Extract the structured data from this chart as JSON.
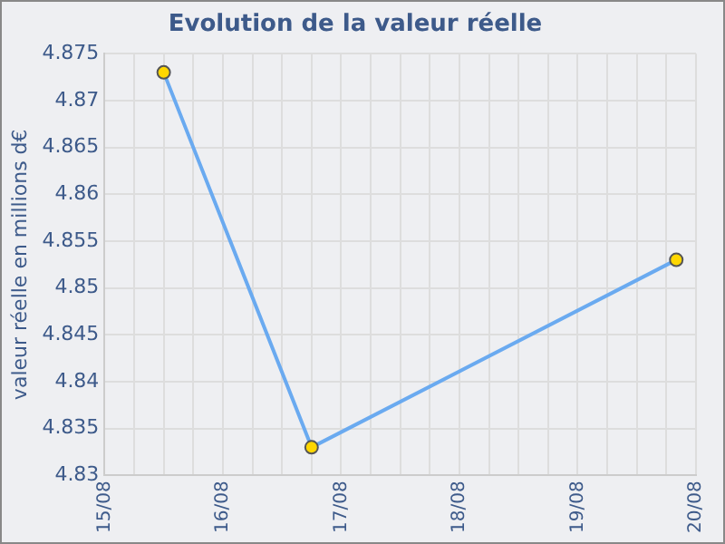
{
  "chart_data": {
    "type": "line",
    "title": "Evolution de la valeur réelle",
    "ylabel": "valeur réelle en millions d€",
    "x": [
      "--08-15T12:00",
      "--08-16T18:00",
      "--08-19T20:00"
    ],
    "series": [
      {
        "color": "#6aaaf0",
        "values": [
          4.873,
          4.833,
          4.853
        ]
      }
    ],
    "xlim": [
      "--08-15",
      "--08-20"
    ],
    "xticks": [
      {
        "value": "--08-15",
        "label": "15/08"
      },
      {
        "value": "--08-15T06:00",
        "label": null
      },
      {
        "value": "--08-15T12:00",
        "label": null
      },
      {
        "value": "--08-15T18:00",
        "label": null
      },
      {
        "value": "--08-16",
        "label": "16/08"
      },
      {
        "value": "--08-16T06:00",
        "label": null
      },
      {
        "value": "--08-16T12:00",
        "label": null
      },
      {
        "value": "--08-16T18:00",
        "label": null
      },
      {
        "value": "--08-17",
        "label": "17/08"
      },
      {
        "value": "--08-17T06:00",
        "label": null
      },
      {
        "value": "--08-17T12:00",
        "label": null
      },
      {
        "value": "--08-17T18:00",
        "label": null
      },
      {
        "value": "--08-18",
        "label": "18/08"
      },
      {
        "value": "--08-18T06:00",
        "label": null
      },
      {
        "value": "--08-18T12:00",
        "label": null
      },
      {
        "value": "--08-18T18:00",
        "label": null
      },
      {
        "value": "--08-19",
        "label": "19/08"
      },
      {
        "value": "--08-19T06:00",
        "label": null
      },
      {
        "value": "--08-19T12:00",
        "label": null
      },
      {
        "value": "--08-19T18:00",
        "label": null
      },
      {
        "value": "--08-20",
        "label": "20/08"
      }
    ],
    "ylim": [
      4.83,
      4.875
    ],
    "yticks": [
      4.83,
      4.835,
      4.84,
      4.845,
      4.85,
      4.855,
      4.86,
      4.865,
      4.87,
      4.875
    ],
    "grid": true,
    "marker": "circle",
    "line_style": "solid"
  }
}
